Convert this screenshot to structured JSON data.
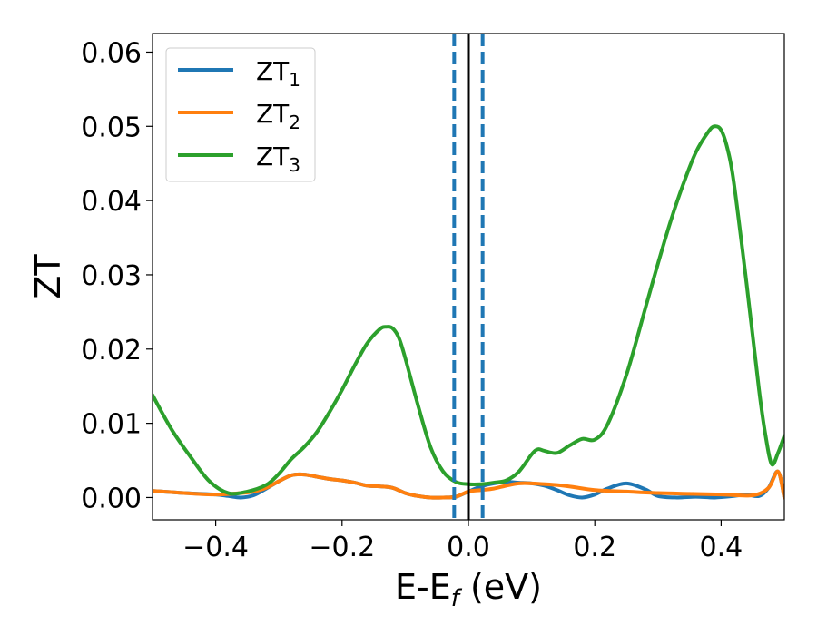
{
  "chart_data": {
    "type": "line",
    "xlabel": "E-E",
    "xlabel_sub": "f",
    "xlabel_unit": " (eV)",
    "ylabel": "ZT",
    "xlim": [
      -0.5,
      0.5
    ],
    "ylim": [
      -0.003,
      0.0625
    ],
    "x_ticks": [
      -0.4,
      -0.2,
      0.0,
      0.2,
      0.4
    ],
    "x_tick_labels": [
      "−0.4",
      "−0.2",
      "0.0",
      "0.2",
      "0.4"
    ],
    "y_ticks": [
      0.0,
      0.01,
      0.02,
      0.03,
      0.04,
      0.05,
      0.06
    ],
    "y_tick_labels": [
      "0.00",
      "0.01",
      "0.02",
      "0.03",
      "0.04",
      "0.05",
      "0.06"
    ],
    "grid": false,
    "legend_position": "top-left",
    "series": [
      {
        "name": "ZT",
        "name_sub": "1",
        "color": "#1f77b4",
        "x": [
          -0.5,
          -0.45,
          -0.4,
          -0.38,
          -0.36,
          -0.34,
          -0.32,
          -0.3,
          -0.28,
          -0.26,
          -0.24,
          -0.22,
          -0.2,
          -0.18,
          -0.16,
          -0.14,
          -0.12,
          -0.1,
          -0.08,
          -0.06,
          -0.04,
          -0.02,
          0.0,
          0.02,
          0.04,
          0.06,
          0.08,
          0.1,
          0.12,
          0.14,
          0.16,
          0.18,
          0.2,
          0.22,
          0.25,
          0.28,
          0.3,
          0.33,
          0.36,
          0.39,
          0.42,
          0.44,
          0.46,
          0.475,
          0.49,
          0.5
        ],
        "y": [
          0.0009,
          0.0006,
          0.0004,
          0.0002,
          0.0,
          0.0003,
          0.0012,
          0.0022,
          0.003,
          0.0031,
          0.0028,
          0.0025,
          0.0023,
          0.002,
          0.0016,
          0.0015,
          0.0013,
          0.0006,
          0.0002,
          0.0,
          0.0,
          0.0001,
          0.0008,
          0.0015,
          0.0019,
          0.0021,
          0.002,
          0.0019,
          0.0016,
          0.001,
          0.0003,
          0.0,
          0.0004,
          0.0012,
          0.0019,
          0.0011,
          0.0002,
          0.0,
          0.0001,
          0.0,
          0.0002,
          0.0004,
          0.0002,
          0.0013,
          0.0035,
          0.0
        ]
      },
      {
        "name": "ZT",
        "name_sub": "2",
        "color": "#ff7f0e",
        "x": [
          -0.5,
          -0.45,
          -0.4,
          -0.36,
          -0.34,
          -0.32,
          -0.3,
          -0.28,
          -0.26,
          -0.24,
          -0.22,
          -0.2,
          -0.18,
          -0.16,
          -0.14,
          -0.12,
          -0.1,
          -0.08,
          -0.06,
          -0.04,
          -0.02,
          0.0,
          0.02,
          0.04,
          0.06,
          0.08,
          0.1,
          0.15,
          0.2,
          0.25,
          0.3,
          0.35,
          0.4,
          0.45,
          0.475,
          0.49,
          0.5
        ],
        "y": [
          0.0009,
          0.0006,
          0.0004,
          0.0006,
          0.0008,
          0.0013,
          0.0022,
          0.003,
          0.0031,
          0.0028,
          0.0025,
          0.0023,
          0.002,
          0.0016,
          0.0015,
          0.0013,
          0.0006,
          0.0002,
          0.0,
          0.0,
          0.0001,
          0.0008,
          0.001,
          0.0012,
          0.0016,
          0.0019,
          0.0019,
          0.0016,
          0.001,
          0.0008,
          0.0006,
          0.0005,
          0.0004,
          0.0003,
          0.0013,
          0.0035,
          0.0
        ]
      },
      {
        "name": "ZT",
        "name_sub": "3",
        "color": "#2ca02c",
        "x": [
          -0.5,
          -0.47,
          -0.44,
          -0.41,
          -0.38,
          -0.35,
          -0.32,
          -0.3,
          -0.28,
          -0.26,
          -0.24,
          -0.22,
          -0.2,
          -0.18,
          -0.16,
          -0.14,
          -0.13,
          -0.12,
          -0.11,
          -0.1,
          -0.08,
          -0.06,
          -0.04,
          -0.02,
          0.0,
          0.02,
          0.04,
          0.06,
          0.08,
          0.1,
          0.11,
          0.12,
          0.14,
          0.16,
          0.18,
          0.2,
          0.22,
          0.25,
          0.28,
          0.3,
          0.32,
          0.34,
          0.36,
          0.38,
          0.39,
          0.4,
          0.41,
          0.42,
          0.44,
          0.46,
          0.47,
          0.48,
          0.49,
          0.5
        ],
        "y": [
          0.0138,
          0.0092,
          0.0055,
          0.0022,
          0.0006,
          0.0008,
          0.0017,
          0.0032,
          0.0052,
          0.0068,
          0.0088,
          0.0115,
          0.0145,
          0.0178,
          0.0208,
          0.0227,
          0.023,
          0.0228,
          0.0215,
          0.0188,
          0.0125,
          0.0068,
          0.0035,
          0.0021,
          0.0018,
          0.0018,
          0.002,
          0.0023,
          0.0035,
          0.0058,
          0.0065,
          0.0063,
          0.006,
          0.007,
          0.0079,
          0.0078,
          0.0098,
          0.0165,
          0.0255,
          0.0315,
          0.0372,
          0.0422,
          0.0465,
          0.0493,
          0.05,
          0.0495,
          0.047,
          0.0425,
          0.029,
          0.0145,
          0.0085,
          0.0045,
          0.006,
          0.0083
        ]
      }
    ],
    "vlines": [
      {
        "x": -0.0225,
        "style": "dashed",
        "color": "#1f77b4"
      },
      {
        "x": 0.0,
        "style": "solid",
        "color": "#000000"
      },
      {
        "x": 0.0225,
        "style": "dashed",
        "color": "#1f77b4"
      }
    ]
  }
}
